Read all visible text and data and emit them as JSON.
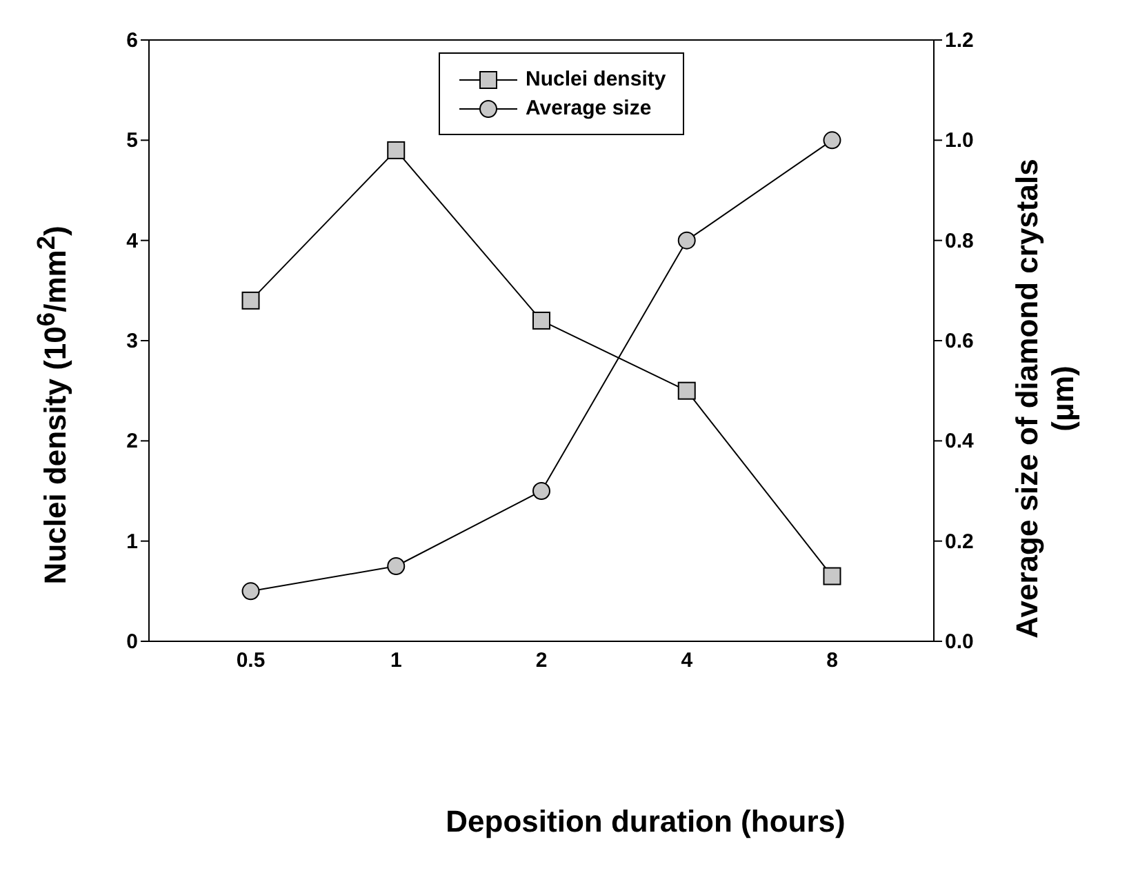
{
  "chart_data": {
    "type": "line",
    "xlabel": "Deposition duration (hours)",
    "ylabel": "Nuclei density (10$^{6}$/mm$^{2}$)",
    "y2label": "Average size of diamond crystals (μm)",
    "categories": [
      "0.5",
      "1",
      "2",
      "4",
      "8"
    ],
    "series": [
      {
        "name": "Nuclei density",
        "color": "#000000",
        "marker": "square",
        "values": [
          3.4,
          4.9,
          3.2,
          2.5,
          0.65
        ]
      },
      {
        "name": "Average size",
        "color": "#000000",
        "marker": "circle",
        "axis": "y2",
        "values": [
          0.1,
          0.15,
          0.3,
          0.8,
          1.0
        ]
      }
    ],
    "ylim": [
      0,
      6
    ],
    "yticks": [
      0,
      1,
      2,
      3,
      4,
      5,
      6
    ],
    "y2lim": [
      0,
      1.2
    ],
    "y2ticks": [
      {
        "value": 0,
        "label": "0.0"
      },
      0.2,
      0.4,
      0.6,
      0.8,
      {
        "value": 1,
        "label": "1.0"
      },
      1.2
    ],
    "legend": "top",
    "line_style": "solid",
    "grid": false
  }
}
